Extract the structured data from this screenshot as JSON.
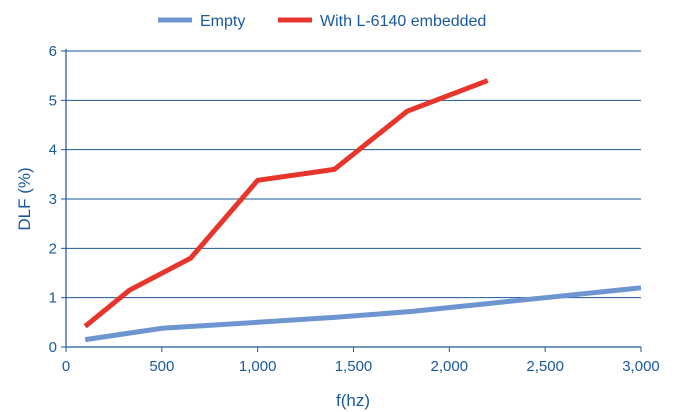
{
  "chart_data": {
    "type": "line",
    "title": "",
    "xlabel": "f(hz)",
    "ylabel": "DLF (%)",
    "xlim": [
      0,
      3000
    ],
    "ylim": [
      0,
      6
    ],
    "x_ticks": [
      {
        "value": 0,
        "label": "0"
      },
      {
        "value": 500,
        "label": "500"
      },
      {
        "value": 1000,
        "label": "1,000"
      },
      {
        "value": 1500,
        "label": "1,500"
      },
      {
        "value": 2000,
        "label": "2,000"
      },
      {
        "value": 2500,
        "label": "2,500"
      },
      {
        "value": 3000,
        "label": "3,000"
      }
    ],
    "y_ticks": [
      {
        "value": 0,
        "label": "0"
      },
      {
        "value": 1,
        "label": "1"
      },
      {
        "value": 2,
        "label": "2"
      },
      {
        "value": 3,
        "label": "3"
      },
      {
        "value": 4,
        "label": "4"
      },
      {
        "value": 5,
        "label": "5"
      },
      {
        "value": 6,
        "label": "6"
      }
    ],
    "grid": "horizontal",
    "legend_position": "top",
    "series": [
      {
        "name": "Empty",
        "color": "#6f95d0",
        "points": [
          {
            "x": 100,
            "y": 0.15
          },
          {
            "x": 500,
            "y": 0.38
          },
          {
            "x": 1000,
            "y": 0.5
          },
          {
            "x": 1400,
            "y": 0.6
          },
          {
            "x": 1800,
            "y": 0.72
          },
          {
            "x": 2200,
            "y": 0.88
          },
          {
            "x": 2500,
            "y": 1.0
          },
          {
            "x": 3000,
            "y": 1.2
          }
        ]
      },
      {
        "name": "With L-6140 embedded",
        "color": "#e8352b",
        "points": [
          {
            "x": 100,
            "y": 0.42
          },
          {
            "x": 330,
            "y": 1.15
          },
          {
            "x": 650,
            "y": 1.8
          },
          {
            "x": 1000,
            "y": 3.38
          },
          {
            "x": 1400,
            "y": 3.6
          },
          {
            "x": 1780,
            "y": 4.78
          },
          {
            "x": 2200,
            "y": 5.4
          }
        ]
      }
    ]
  }
}
